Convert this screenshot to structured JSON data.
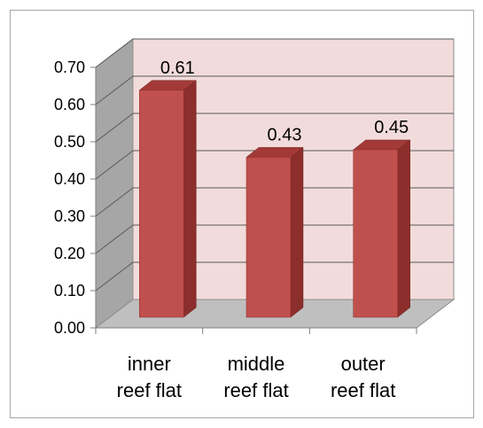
{
  "chart_data": {
    "type": "bar",
    "style": "3d-column",
    "categories": [
      [
        "inner",
        "reef flat"
      ],
      [
        "middle",
        "reef flat"
      ],
      [
        "outer",
        "reef flat"
      ]
    ],
    "values": [
      0.61,
      0.43,
      0.45
    ],
    "data_labels": [
      "0.61",
      "0.43",
      "0.45"
    ],
    "y_tick_labels": [
      "0.00",
      "0.10",
      "0.20",
      "0.30",
      "0.40",
      "0.50",
      "0.60",
      "0.70"
    ],
    "ylim": [
      0,
      0.7
    ],
    "grid": true,
    "legend": "none",
    "colors": {
      "bar_front": "#c0504d",
      "bar_side": "#8b2e2c",
      "bar_top": "#a33a37",
      "back_wall": "#f2dcdb",
      "side_wall": "#a6a6a6",
      "floor": "#bfbfbf",
      "gridline": "#595959"
    }
  }
}
